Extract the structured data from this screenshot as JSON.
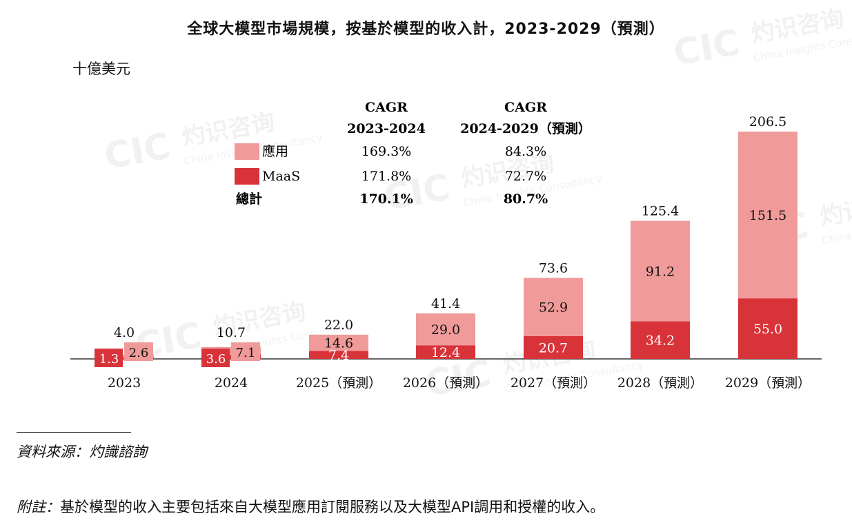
{
  "chart_data": {
    "type": "bar",
    "stacked": true,
    "title": "全球大模型市場規模，按基於模型的收入計，2023-2029（預測）",
    "unit_label": "十億美元",
    "categories": [
      "2023",
      "2024",
      "2025（預測）",
      "2026（預測）",
      "2027（預測）",
      "2028（預測）",
      "2029（預測）"
    ],
    "series": [
      {
        "name": "MaaS",
        "values": [
          1.3,
          3.6,
          7.4,
          12.4,
          20.7,
          34.2,
          55.0
        ],
        "labels": [
          "1.3",
          "3.6",
          "7.4",
          "12.4",
          "20.7",
          "34.2",
          "55.0"
        ],
        "color": "#d9333a"
      },
      {
        "name": "應用",
        "values": [
          2.6,
          7.1,
          14.6,
          29.0,
          52.9,
          91.2,
          151.5
        ],
        "labels": [
          "2.6",
          "7.1",
          "14.6",
          "29.0",
          "52.9",
          "91.2",
          "151.5"
        ],
        "color": "#f09a9a"
      }
    ],
    "totals": [
      4.0,
      10.7,
      22.0,
      41.4,
      73.6,
      125.4,
      206.5
    ],
    "total_labels": [
      "4.0",
      "10.7",
      "22.0",
      "41.4",
      "73.6",
      "125.4",
      "206.5"
    ],
    "ylim": [
      0,
      210
    ],
    "legend_placement": "top-left",
    "cagr_table": {
      "headers": [
        {
          "line1": "CAGR",
          "line2": "2023-2024"
        },
        {
          "line1": "CAGR",
          "line2": "2024-2029（預測）"
        }
      ],
      "rows": [
        {
          "label": "應用",
          "values": [
            "169.3%",
            "84.3%"
          ],
          "color": "#f09a9a"
        },
        {
          "label": "MaaS",
          "values": [
            "171.8%",
            "72.7%"
          ],
          "color": "#d9333a"
        },
        {
          "label": "總計",
          "values": [
            "170.1%",
            "80.7%"
          ],
          "bold": true
        }
      ]
    }
  },
  "footer": {
    "source": "資料來源：灼識諮詢",
    "note_label": "附註：",
    "note_text": "基於模型的收入主要包括來自大模型應用訂閱服務以及大模型API調用和授權的收入。"
  },
  "watermark": {
    "logo_text": "CIC",
    "cn_text": "灼识咨询",
    "en_text": "China Insights Consultancy",
    "color": "#e6e6e6"
  }
}
